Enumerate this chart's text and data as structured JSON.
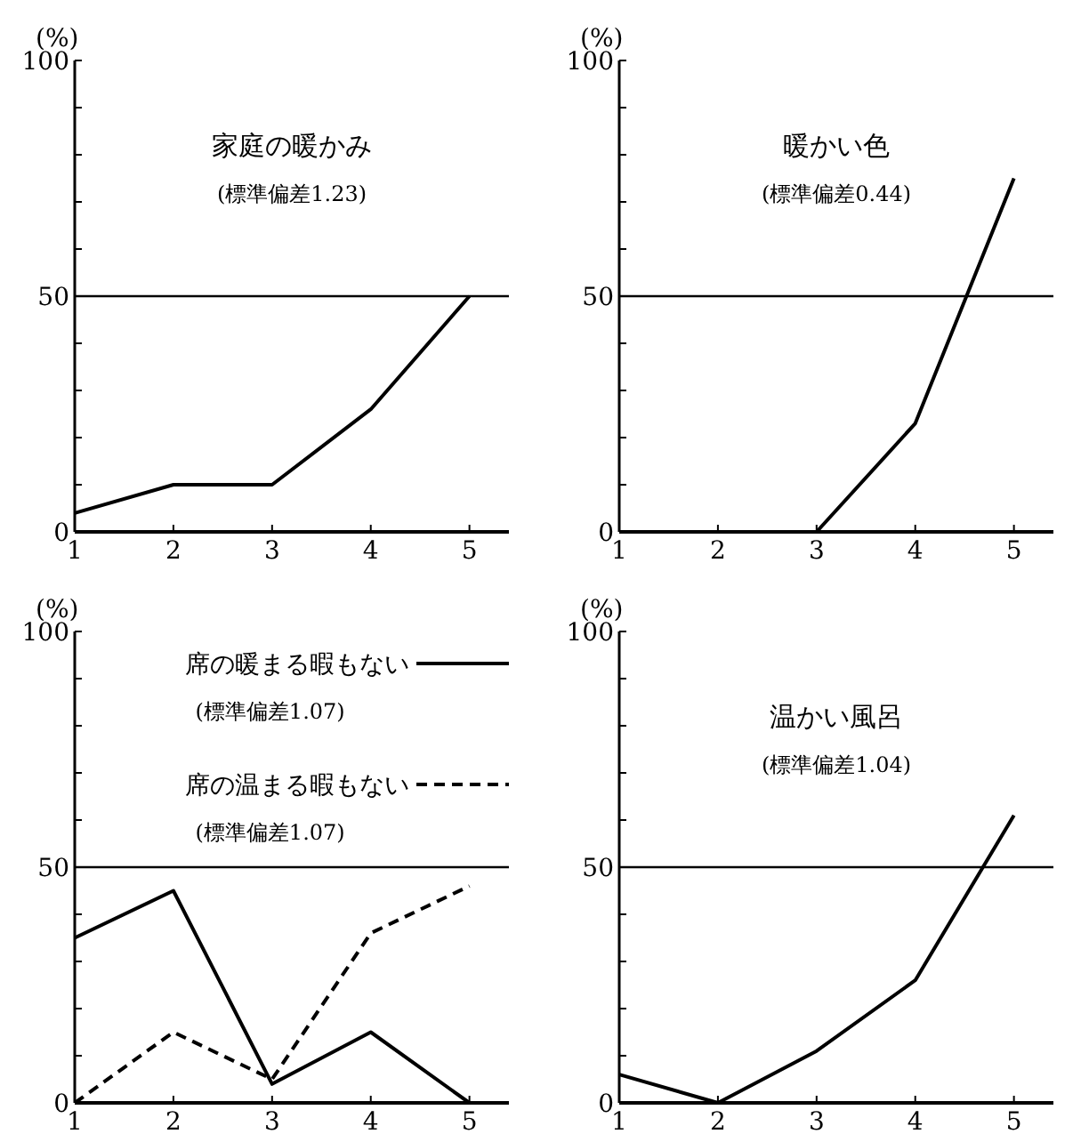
{
  "chart_data": [
    {
      "type": "line",
      "title": "家庭の暖かみ",
      "subtitle": "(標準偏差1.23)",
      "ylabel": "(%)",
      "x": [
        1,
        2,
        3,
        4,
        5
      ],
      "xlim": [
        1,
        5.4
      ],
      "xticks": [
        1,
        2,
        3,
        4,
        5
      ],
      "ylim": [
        0,
        100
      ],
      "yticks": [
        0,
        {
          "value": 10,
          "label": null
        },
        {
          "value": 20,
          "label": null
        },
        {
          "value": 30,
          "label": null
        },
        {
          "value": 40,
          "label": null
        },
        50,
        {
          "value": 60,
          "label": null
        },
        {
          "value": 70,
          "label": null
        },
        {
          "value": 80,
          "label": null
        },
        {
          "value": 90,
          "label": null
        },
        100
      ],
      "ref_lines": [
        {
          "axis": "y",
          "value": 50,
          "color": "#000000"
        }
      ],
      "series": [
        {
          "color": "#000000",
          "values": [
            4,
            10,
            10,
            26,
            50
          ]
        }
      ],
      "grid": false,
      "line_style": "solid",
      "marker": "none"
    },
    {
      "type": "line",
      "title": "暖かい色",
      "subtitle": "(標準偏差0.44)",
      "ylabel": "(%)",
      "xlim": [
        1,
        5.4
      ],
      "xticks": [
        1,
        2,
        3,
        4,
        5
      ],
      "ylim": [
        0,
        100
      ],
      "yticks": [
        0,
        {
          "value": 10,
          "label": null
        },
        {
          "value": 20,
          "label": null
        },
        {
          "value": 30,
          "label": null
        },
        {
          "value": 40,
          "label": null
        },
        50,
        {
          "value": 60,
          "label": null
        },
        {
          "value": 70,
          "label": null
        },
        {
          "value": 80,
          "label": null
        },
        {
          "value": 90,
          "label": null
        },
        100
      ],
      "ref_lines": [
        {
          "axis": "y",
          "value": 50,
          "color": "#000000"
        }
      ],
      "series": [
        {
          "color": "#000000",
          "x": [
            3,
            4,
            5
          ],
          "values": [
            0,
            23,
            75
          ]
        }
      ],
      "grid": false,
      "line_style": "solid",
      "marker": "none"
    },
    {
      "type": "line",
      "ylabel": "(%)",
      "x": [
        1,
        2,
        3,
        4,
        5
      ],
      "xlim": [
        1,
        5.4
      ],
      "xticks": [
        1,
        2,
        3,
        4,
        5
      ],
      "ylim": [
        0,
        100
      ],
      "yticks": [
        0,
        {
          "value": 10,
          "label": null
        },
        {
          "value": 20,
          "label": null
        },
        {
          "value": 30,
          "label": null
        },
        {
          "value": 40,
          "label": null
        },
        50,
        {
          "value": 60,
          "label": null
        },
        {
          "value": 70,
          "label": null
        },
        {
          "value": 80,
          "label": null
        },
        {
          "value": 90,
          "label": null
        },
        100
      ],
      "ref_lines": [
        {
          "axis": "y",
          "value": 50,
          "color": "#000000"
        }
      ],
      "annotations": [
        "(標準偏差1.07)",
        "(標準偏差1.07)"
      ],
      "legend": "top",
      "series": [
        {
          "name": "席の暖まる暇もない",
          "color": "#000000",
          "line_style": "solid",
          "values": [
            35,
            45,
            4,
            15,
            0
          ]
        },
        {
          "name": "席の温まる暇もない",
          "color": "#000000",
          "line_style": "dashed",
          "values": [
            0,
            15,
            5,
            36,
            46
          ]
        }
      ],
      "grid": false,
      "marker": "none"
    },
    {
      "type": "line",
      "title": "温かい風呂",
      "subtitle": "(標準偏差1.04)",
      "ylabel": "(%)",
      "x": [
        1,
        2,
        3,
        4,
        5
      ],
      "xlim": [
        1,
        5.4
      ],
      "xticks": [
        1,
        2,
        3,
        4,
        5
      ],
      "ylim": [
        0,
        100
      ],
      "yticks": [
        0,
        {
          "value": 10,
          "label": null
        },
        {
          "value": 20,
          "label": null
        },
        {
          "value": 30,
          "label": null
        },
        {
          "value": 40,
          "label": null
        },
        50,
        {
          "value": 60,
          "label": null
        },
        {
          "value": 70,
          "label": null
        },
        {
          "value": 80,
          "label": null
        },
        {
          "value": 90,
          "label": null
        },
        100
      ],
      "ref_lines": [
        {
          "axis": "y",
          "value": 50,
          "color": "#000000"
        }
      ],
      "series": [
        {
          "color": "#000000",
          "values": [
            6,
            0,
            11,
            26,
            61
          ]
        }
      ],
      "grid": false,
      "line_style": "solid",
      "marker": "none"
    }
  ]
}
